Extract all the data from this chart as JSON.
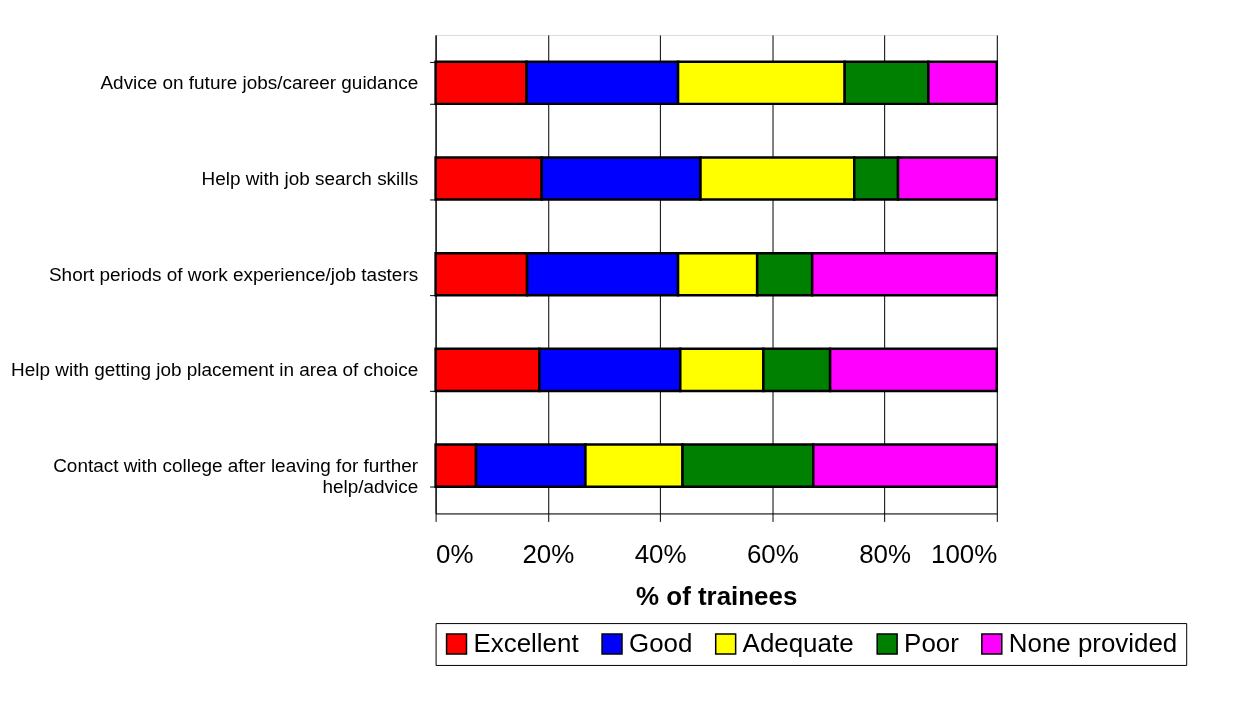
{
  "chart_data": {
    "type": "bar",
    "orientation": "horizontal",
    "stacked": true,
    "xlabel": "% of trainees",
    "categories": [
      "Advice on future jobs/career guidance",
      "Help with job search skills",
      "Short periods of work experience/job tasters",
      "Help with getting job placement in area of choice",
      "Contact with college after leaving for further help/advice"
    ],
    "series": [
      {
        "name": "Excellent",
        "color": "#ff0000",
        "values": [
          16.2,
          18.9,
          16.3,
          18.5,
          7.2
        ]
      },
      {
        "name": "Good",
        "color": "#0000ff",
        "values": [
          27.0,
          28.3,
          26.9,
          25.1,
          19.5
        ]
      },
      {
        "name": "Adequate",
        "color": "#ffff00",
        "values": [
          29.7,
          27.4,
          14.1,
          14.8,
          17.3
        ]
      },
      {
        "name": "Poor",
        "color": "#008000",
        "values": [
          14.9,
          7.8,
          9.8,
          11.9,
          23.3
        ]
      },
      {
        "name": "None provided",
        "color": "#ff00ff",
        "values": [
          12.2,
          17.6,
          32.9,
          29.7,
          32.7
        ]
      }
    ],
    "xlim": [
      0,
      100
    ],
    "xticks": [
      {
        "value": 0,
        "label": "0%"
      },
      {
        "value": 20,
        "label": "20%"
      },
      {
        "value": 40,
        "label": "40%"
      },
      {
        "value": 60,
        "label": "60%"
      },
      {
        "value": 80,
        "label": "80%"
      },
      {
        "value": 100,
        "label": "100%"
      }
    ],
    "grid": "x",
    "legend": "bottom"
  }
}
